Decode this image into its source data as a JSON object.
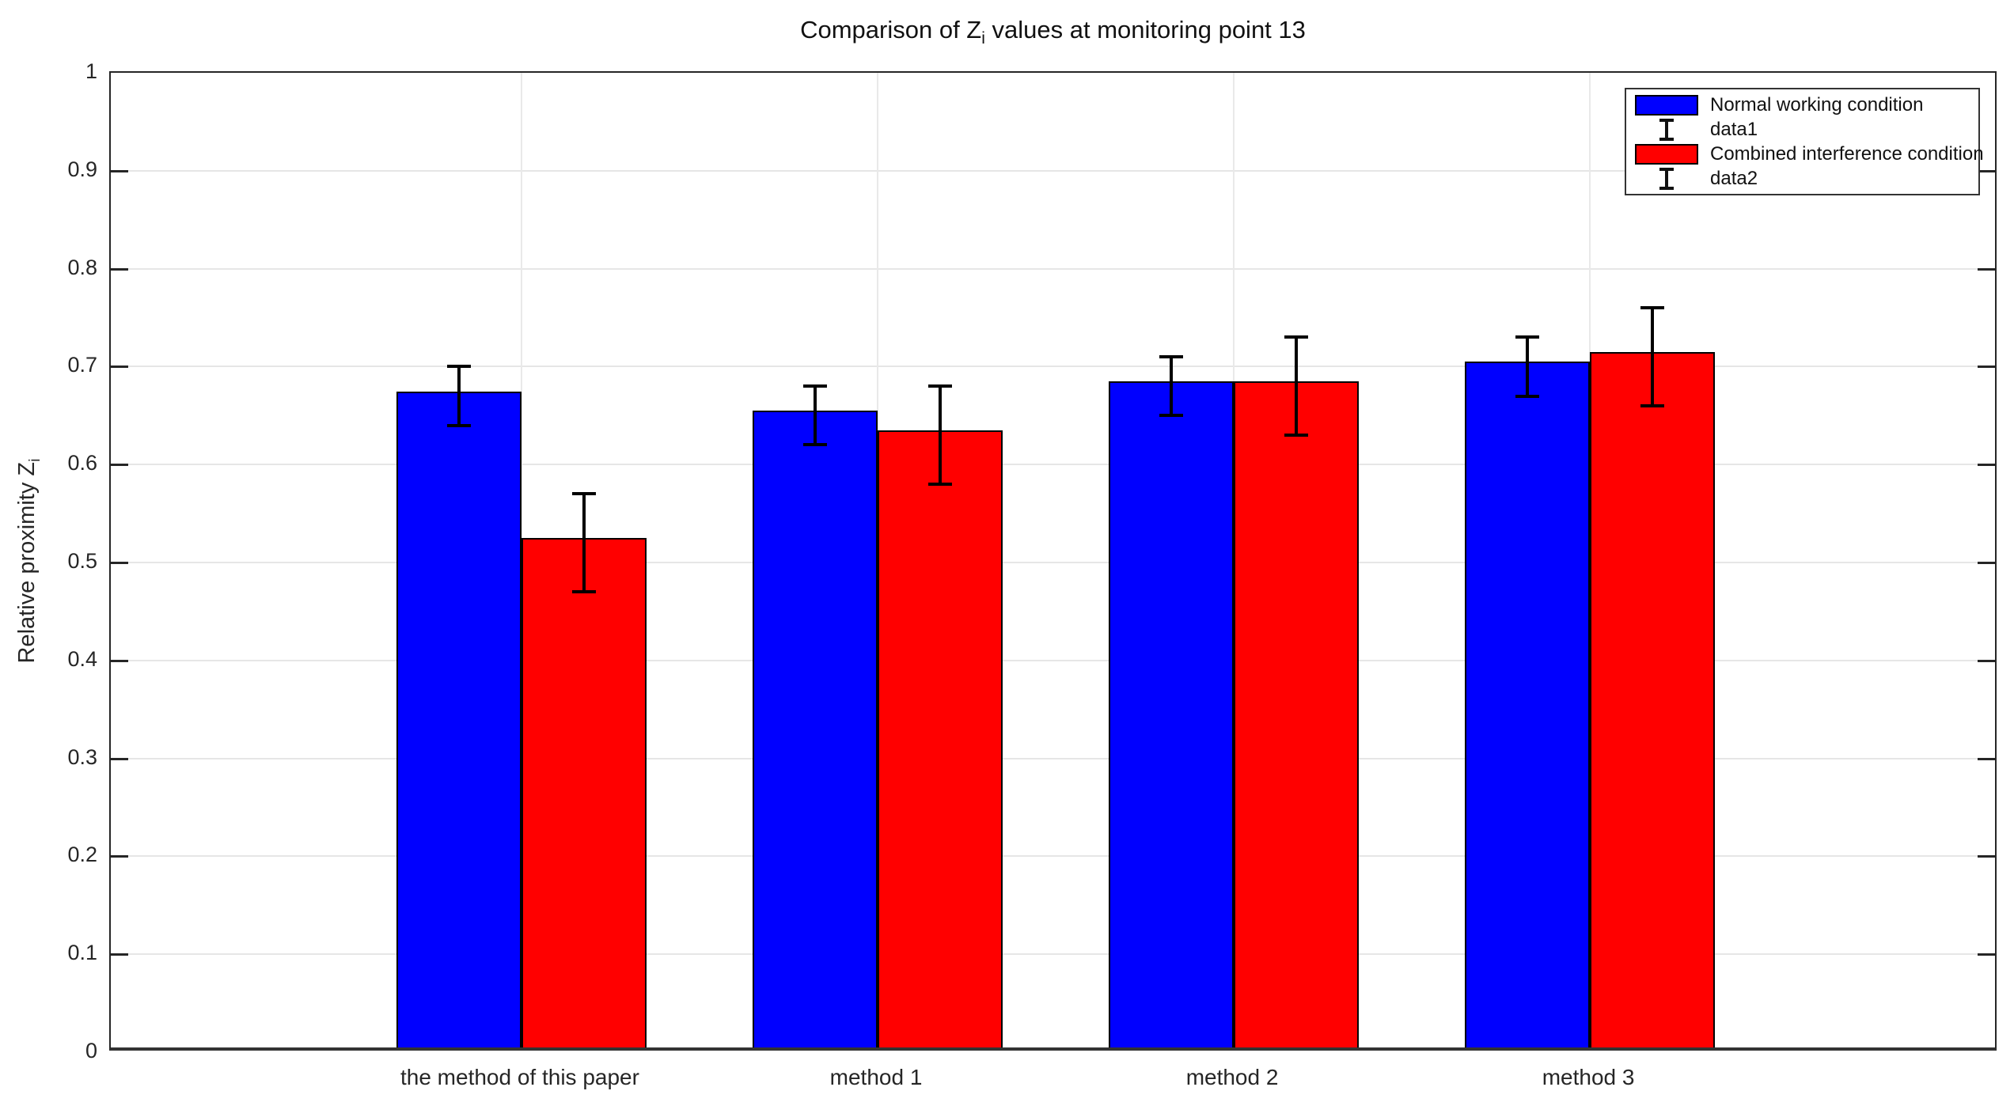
{
  "figure": {
    "title": {
      "prefix": "Comparison of Z",
      "sub": "i",
      "suffix": " values at monitoring point 13"
    },
    "y_axis": {
      "label_prefix": "Relative proximity Z",
      "label_sub": "i"
    }
  },
  "chart_data": {
    "type": "bar",
    "title": "Comparison of Z_i values at monitoring point 13",
    "xlabel": "",
    "ylabel": "Relative proximity Z_i",
    "categories": [
      "the method of this paper",
      "method 1",
      "method 2",
      "method 3"
    ],
    "series": [
      {
        "name": "Normal working condition",
        "color": "#0000ff",
        "values": [
          0.67,
          0.65,
          0.68,
          0.7
        ],
        "errors": [
          0.03,
          0.03,
          0.03,
          0.03
        ]
      },
      {
        "name": "Combined interference condition",
        "color": "#ff0000",
        "values": [
          0.52,
          0.63,
          0.68,
          0.71
        ],
        "errors": [
          0.05,
          0.05,
          0.05,
          0.05
        ]
      }
    ],
    "ylim": [
      0,
      1
    ],
    "yticks": {
      "values": [
        0,
        0.1,
        0.2,
        0.3,
        0.4,
        0.5,
        0.6,
        0.7,
        0.8,
        0.9,
        1
      ],
      "labels": [
        "0",
        "0.1",
        "0.2",
        "0.3",
        "0.4",
        "0.5",
        "0.6",
        "0.7",
        "0.8",
        "0.9",
        "1"
      ]
    },
    "grid": true,
    "legend": {
      "position": "top-right",
      "entries": [
        {
          "icon": "patch",
          "color": "#0000ff",
          "label": "Normal working condition"
        },
        {
          "icon": "errorbar",
          "label": "data1"
        },
        {
          "icon": "patch",
          "color": "#ff0000",
          "label": "Combined interference condition"
        },
        {
          "icon": "errorbar",
          "label": "data2"
        }
      ]
    },
    "colors": {
      "bar_edge": "#000000",
      "errorbar": "#000000",
      "axis": "#262626",
      "grid": "#e6e6e6",
      "background": "#ffffff"
    }
  }
}
